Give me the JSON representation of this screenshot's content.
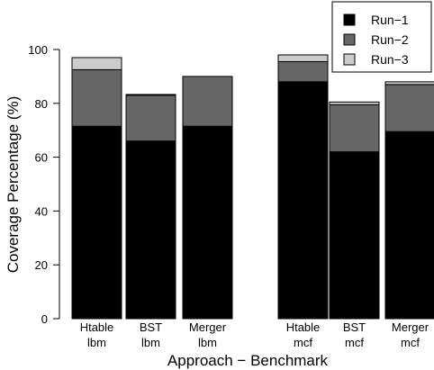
{
  "chart_data": {
    "type": "bar",
    "stacked": true,
    "title": "",
    "xlabel": "Approach − Benchmark",
    "ylabel": "Coverage Percentage (%)",
    "ylim": [
      0,
      100
    ],
    "yticks": [
      0,
      20,
      40,
      60,
      80,
      100
    ],
    "grid": false,
    "legend_position": "top-right",
    "categories": [
      {
        "approach": "Htable",
        "benchmark": "lbm"
      },
      {
        "approach": "BST",
        "benchmark": "lbm"
      },
      {
        "approach": "Merger",
        "benchmark": "lbm"
      },
      {
        "approach": "Htable",
        "benchmark": "mcf"
      },
      {
        "approach": "BST",
        "benchmark": "mcf"
      },
      {
        "approach": "Merger",
        "benchmark": "mcf"
      }
    ],
    "series": [
      {
        "name": "Run−1",
        "color": "#000000",
        "values": [
          71.5,
          66,
          71.5,
          88,
          62,
          69.5
        ]
      },
      {
        "name": "Run−2",
        "color": "#666666",
        "values": [
          21,
          17,
          18.5,
          7.5,
          17.5,
          17.5
        ]
      },
      {
        "name": "Run−3",
        "color": "#cccccc",
        "values": [
          4.5,
          0.3,
          0,
          2.5,
          1,
          1
        ]
      }
    ]
  }
}
